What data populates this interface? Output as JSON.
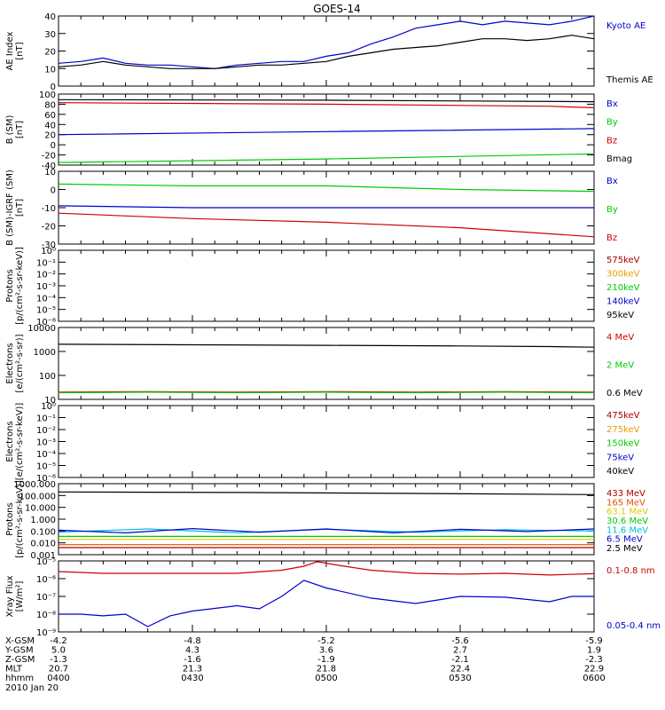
{
  "title": "GOES-14",
  "footer": {
    "rows": [
      {
        "label": "X-GSM",
        "values": [
          "-4.2",
          "-4.8",
          "-5.2",
          "-5.6",
          "-5.9"
        ]
      },
      {
        "label": "Y-GSM",
        "values": [
          "5.0",
          "4.3",
          "3.6",
          "2.7",
          "1.9"
        ]
      },
      {
        "label": "Z-GSM",
        "values": [
          "-1.3",
          "-1.6",
          "-1.9",
          "-2.1",
          "-2.3"
        ]
      },
      {
        "label": "MLT",
        "values": [
          "20.7",
          "21.3",
          "21.8",
          "22.4",
          "22.9"
        ]
      },
      {
        "label": "hhmm",
        "values": [
          "0400",
          "0430",
          "0500",
          "0530",
          "0600"
        ]
      }
    ],
    "date": "2010 Jan 20"
  },
  "chart_data": [
    {
      "type": "line",
      "ylabel": "AE Index\n[nT]",
      "scale": "linear",
      "ylim": [
        0,
        40
      ],
      "yticks": [
        0,
        10,
        20,
        30,
        40
      ],
      "yticklabels": [
        "0",
        "10",
        "20",
        "30",
        "40"
      ],
      "x": [
        "04:00",
        "06:00"
      ],
      "series": [
        {
          "name": "Kyoto AE",
          "color": "#0000cc",
          "points": [
            [
              0,
              13
            ],
            [
              5,
              14
            ],
            [
              10,
              16
            ],
            [
              15,
              13
            ],
            [
              20,
              12
            ],
            [
              25,
              12
            ],
            [
              30,
              11
            ],
            [
              35,
              10
            ],
            [
              40,
              12
            ],
            [
              45,
              13
            ],
            [
              50,
              14
            ],
            [
              55,
              14
            ],
            [
              60,
              17
            ],
            [
              65,
              19
            ],
            [
              70,
              24
            ],
            [
              75,
              28
            ],
            [
              80,
              33
            ],
            [
              85,
              35
            ],
            [
              90,
              37
            ],
            [
              95,
              35
            ],
            [
              100,
              37
            ],
            [
              105,
              36
            ],
            [
              110,
              35
            ],
            [
              115,
              37
            ],
            [
              120,
              40
            ]
          ]
        },
        {
          "name": "Themis AE",
          "color": "#000000",
          "points": [
            [
              0,
              11
            ],
            [
              5,
              12
            ],
            [
              10,
              14
            ],
            [
              15,
              12
            ],
            [
              20,
              11
            ],
            [
              25,
              10
            ],
            [
              30,
              10
            ],
            [
              35,
              10
            ],
            [
              40,
              11
            ],
            [
              45,
              12
            ],
            [
              50,
              12
            ],
            [
              55,
              13
            ],
            [
              60,
              14
            ],
            [
              65,
              17
            ],
            [
              70,
              19
            ],
            [
              75,
              21
            ],
            [
              80,
              22
            ],
            [
              85,
              23
            ],
            [
              90,
              25
            ],
            [
              95,
              27
            ],
            [
              100,
              27
            ],
            [
              105,
              26
            ],
            [
              110,
              27
            ],
            [
              115,
              29
            ],
            [
              120,
              27
            ]
          ]
        }
      ]
    },
    {
      "type": "line",
      "ylabel": "B (SM)\n[nT]",
      "scale": "linear",
      "ylim": [
        -40,
        100
      ],
      "yticks": [
        -40,
        -20,
        0,
        20,
        40,
        60,
        80,
        100
      ],
      "yticklabels": [
        "-40",
        "-20",
        "0",
        "20",
        "40",
        "60",
        "80",
        "100"
      ],
      "series": [
        {
          "name": "Bx",
          "color": "#0000cc",
          "points": [
            [
              0,
              20
            ],
            [
              60,
              26
            ],
            [
              120,
              32
            ]
          ]
        },
        {
          "name": "By",
          "color": "#00cc00",
          "points": [
            [
              0,
              -35
            ],
            [
              60,
              -28
            ],
            [
              120,
              -18
            ]
          ]
        },
        {
          "name": "Bz",
          "color": "#cc0000",
          "points": [
            [
              0,
              83
            ],
            [
              60,
              80
            ],
            [
              110,
              76
            ],
            [
              120,
              73
            ]
          ]
        },
        {
          "name": "Bmag",
          "color": "#000000",
          "points": [
            [
              0,
              89
            ],
            [
              60,
              88
            ],
            [
              120,
              85
            ]
          ]
        }
      ]
    },
    {
      "type": "line",
      "ylabel": "B (SM)-IGRF (SM)\n[nT]",
      "scale": "linear",
      "ylim": [
        -30,
        10
      ],
      "yticks": [
        -30,
        -20,
        -10,
        0,
        10
      ],
      "yticklabels": [
        "-30",
        "-20",
        "-10",
        "0",
        "10"
      ],
      "series": [
        {
          "name": "Bx",
          "color": "#0000cc",
          "points": [
            [
              0,
              -9
            ],
            [
              30,
              -10
            ],
            [
              60,
              -10
            ],
            [
              90,
              -10
            ],
            [
              120,
              -10
            ]
          ]
        },
        {
          "name": "By",
          "color": "#00cc00",
          "points": [
            [
              0,
              3
            ],
            [
              30,
              2
            ],
            [
              60,
              2
            ],
            [
              90,
              0
            ],
            [
              120,
              -1
            ]
          ]
        },
        {
          "name": "Bz",
          "color": "#cc0000",
          "points": [
            [
              0,
              -13
            ],
            [
              30,
              -16
            ],
            [
              60,
              -18
            ],
            [
              90,
              -21
            ],
            [
              120,
              -26
            ]
          ]
        }
      ]
    },
    {
      "type": "line",
      "ylabel": "Protons\n[p/(cm²-s-sr-keV)]",
      "scale": "log",
      "ylim": [
        1e-06,
        1
      ],
      "yticks": [
        1e-06,
        1e-05,
        0.0001,
        0.001,
        0.01,
        0.1,
        1
      ],
      "yticklabels": [
        "10⁻⁶",
        "10⁻⁵",
        "10⁻⁴",
        "10⁻³",
        "10⁻²",
        "10⁻¹",
        "10⁰"
      ],
      "series": [
        {
          "name": "575keV",
          "color": "#aa0000",
          "points": []
        },
        {
          "name": "300keV",
          "color": "#e6a000",
          "points": []
        },
        {
          "name": "210keV",
          "color": "#00cc00",
          "points": []
        },
        {
          "name": "140keV",
          "color": "#0000cc",
          "points": []
        },
        {
          "name": "95keV",
          "color": "#000000",
          "points": []
        }
      ]
    },
    {
      "type": "line",
      "ylabel": "Electrons\n[e/(cm²-s-sr)]",
      "scale": "log",
      "ylim": [
        10,
        10000
      ],
      "yticks": [
        10,
        100,
        1000,
        10000
      ],
      "yticklabels": [
        "10",
        "100",
        "1000",
        "10000"
      ],
      "series": [
        {
          "name": "4 MeV",
          "color": "#cc0000",
          "points": [
            [
              0,
              20
            ],
            [
              20,
              21
            ],
            [
              40,
              20
            ],
            [
              60,
              21
            ],
            [
              80,
              20
            ],
            [
              100,
              21
            ],
            [
              120,
              20
            ]
          ]
        },
        {
          "name": "2 MeV",
          "color": "#00cc00",
          "points": [
            [
              0,
              19
            ],
            [
              20,
              20
            ],
            [
              40,
              19
            ],
            [
              60,
              20
            ],
            [
              80,
              19
            ],
            [
              100,
              20
            ],
            [
              120,
              19
            ]
          ]
        },
        {
          "name": "0.6 MeV",
          "color": "#000000",
          "points": [
            [
              0,
              2000
            ],
            [
              30,
              1900
            ],
            [
              60,
              1800
            ],
            [
              90,
              1700
            ],
            [
              110,
              1600
            ],
            [
              120,
              1500
            ]
          ]
        }
      ]
    },
    {
      "type": "line",
      "ylabel": "Electrons\n[e/(cm²-s-sr-keV)]",
      "scale": "log",
      "ylim": [
        1e-06,
        1
      ],
      "yticks": [
        1e-06,
        1e-05,
        0.0001,
        0.001,
        0.01,
        0.1,
        1
      ],
      "yticklabels": [
        "10⁻⁶",
        "10⁻⁵",
        "10⁻⁴",
        "10⁻³",
        "10⁻²",
        "10⁻¹",
        "10⁰"
      ],
      "series": [
        {
          "name": "475keV",
          "color": "#aa0000",
          "points": []
        },
        {
          "name": "275keV",
          "color": "#e6a000",
          "points": []
        },
        {
          "name": "150keV",
          "color": "#00cc00",
          "points": []
        },
        {
          "name": "75keV",
          "color": "#0000cc",
          "points": []
        },
        {
          "name": "40keV",
          "color": "#000000",
          "points": []
        }
      ]
    },
    {
      "type": "line",
      "ylabel": "Protons\n[p/(cm²-s-sr-keV)]",
      "scale": "log",
      "ylim": [
        0.001,
        1000
      ],
      "yticks": [
        0.001,
        0.01,
        0.1,
        1,
        10,
        100,
        1000
      ],
      "yticklabels": [
        "0.001",
        "0.010",
        "0.100",
        "1.000",
        "10.000",
        "100.000",
        "1000.000"
      ],
      "series": [
        {
          "name": "433 MeV",
          "color": "#aa0000",
          "points": [
            [
              0,
              0.004
            ],
            [
              60,
              0.004
            ],
            [
              120,
              0.004
            ]
          ]
        },
        {
          "name": "165 MeV",
          "color": "#e65000",
          "points": [
            [
              0,
              0.007
            ],
            [
              60,
              0.007
            ],
            [
              120,
              0.007
            ]
          ]
        },
        {
          "name": "63.1 MeV",
          "color": "#e6c800",
          "points": [
            [
              0,
              0.02
            ],
            [
              60,
              0.02
            ],
            [
              120,
              0.02
            ]
          ]
        },
        {
          "name": "30.6 MeV",
          "color": "#00cc00",
          "points": [
            [
              0,
              0.035
            ],
            [
              60,
              0.035
            ],
            [
              120,
              0.035
            ]
          ]
        },
        {
          "name": "11.6 MeV",
          "color": "#00bbdd",
          "points": [
            [
              0,
              0.08
            ],
            [
              20,
              0.15
            ],
            [
              40,
              0.07
            ],
            [
              60,
              0.14
            ],
            [
              80,
              0.08
            ],
            [
              100,
              0.13
            ],
            [
              120,
              0.1
            ]
          ]
        },
        {
          "name": "6.5 MeV",
          "color": "#0000cc",
          "points": [
            [
              0,
              0.12
            ],
            [
              15,
              0.07
            ],
            [
              30,
              0.16
            ],
            [
              45,
              0.08
            ],
            [
              60,
              0.15
            ],
            [
              75,
              0.07
            ],
            [
              90,
              0.14
            ],
            [
              105,
              0.09
            ],
            [
              120,
              0.15
            ]
          ]
        },
        {
          "name": "2.5 MeV",
          "color": "#000000",
          "points": [
            [
              0,
              200
            ],
            [
              40,
              180
            ],
            [
              80,
              150
            ],
            [
              120,
              120
            ]
          ]
        }
      ]
    },
    {
      "type": "line",
      "ylabel": "Xray Flux\n[W/m²]",
      "scale": "log",
      "ylim": [
        1e-09,
        1e-05
      ],
      "yticks": [
        1e-09,
        1e-08,
        1e-07,
        1e-06,
        1e-05
      ],
      "yticklabels": [
        "10⁻⁹",
        "10⁻⁸",
        "10⁻⁷",
        "10⁻⁶",
        "10⁻⁵"
      ],
      "series": [
        {
          "name": "0.1-0.8 nm",
          "color": "#cc0000",
          "points": [
            [
              0,
              2.5e-06
            ],
            [
              10,
              2e-06
            ],
            [
              20,
              2e-06
            ],
            [
              30,
              2e-06
            ],
            [
              40,
              2e-06
            ],
            [
              50,
              3e-06
            ],
            [
              55,
              5e-06
            ],
            [
              58,
              9e-06
            ],
            [
              62,
              6e-06
            ],
            [
              70,
              3e-06
            ],
            [
              80,
              2e-06
            ],
            [
              90,
              1.8e-06
            ],
            [
              100,
              2e-06
            ],
            [
              110,
              1.6e-06
            ],
            [
              120,
              1.9e-06
            ]
          ]
        },
        {
          "name": "0.05-0.4 nm",
          "color": "#0000cc",
          "points": [
            [
              0,
              1e-08
            ],
            [
              5,
              1e-08
            ],
            [
              10,
              8e-09
            ],
            [
              15,
              1e-08
            ],
            [
              20,
              2e-09
            ],
            [
              25,
              8e-09
            ],
            [
              30,
              1.5e-08
            ],
            [
              40,
              3e-08
            ],
            [
              45,
              2e-08
            ],
            [
              50,
              1e-07
            ],
            [
              55,
              8e-07
            ],
            [
              60,
              3e-07
            ],
            [
              70,
              8e-08
            ],
            [
              80,
              4e-08
            ],
            [
              90,
              1e-07
            ],
            [
              100,
              9e-08
            ],
            [
              110,
              5e-08
            ],
            [
              115,
              1e-07
            ],
            [
              120,
              1e-07
            ]
          ]
        }
      ]
    }
  ]
}
